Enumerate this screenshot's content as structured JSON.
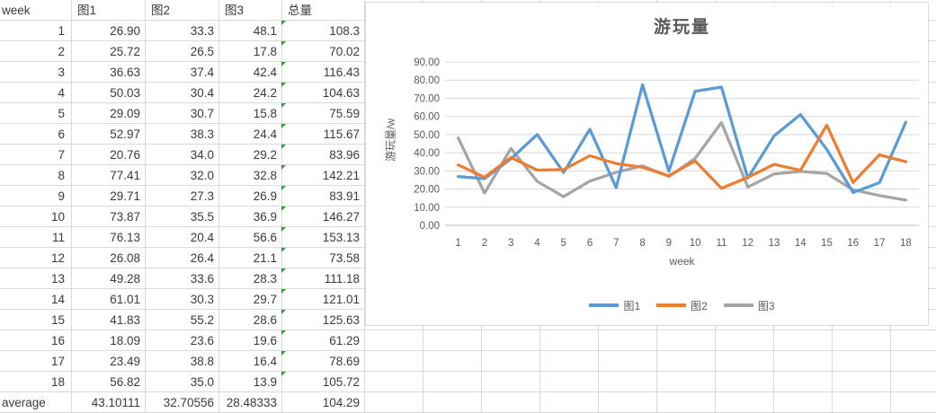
{
  "sheet": {
    "columns": [
      "week",
      "图1",
      "图2",
      "图3",
      "总量"
    ],
    "rows": [
      [
        "1",
        "26.90",
        "33.3",
        "48.1",
        "108.3"
      ],
      [
        "2",
        "25.72",
        "26.5",
        "17.8",
        "70.02"
      ],
      [
        "3",
        "36.63",
        "37.4",
        "42.4",
        "116.43"
      ],
      [
        "4",
        "50.03",
        "30.4",
        "24.2",
        "104.63"
      ],
      [
        "5",
        "29.09",
        "30.7",
        "15.8",
        "75.59"
      ],
      [
        "6",
        "52.97",
        "38.3",
        "24.4",
        "115.67"
      ],
      [
        "7",
        "20.76",
        "34.0",
        "29.2",
        "83.96"
      ],
      [
        "8",
        "77.41",
        "32.0",
        "32.8",
        "142.21"
      ],
      [
        "9",
        "29.71",
        "27.3",
        "26.9",
        "83.91"
      ],
      [
        "10",
        "73.87",
        "35.5",
        "36.9",
        "146.27"
      ],
      [
        "11",
        "76.13",
        "20.4",
        "56.6",
        "153.13"
      ],
      [
        "12",
        "26.08",
        "26.4",
        "21.1",
        "73.58"
      ],
      [
        "13",
        "49.28",
        "33.6",
        "28.3",
        "111.18"
      ],
      [
        "14",
        "61.01",
        "30.3",
        "29.7",
        "121.01"
      ],
      [
        "15",
        "41.83",
        "55.2",
        "28.6",
        "125.63"
      ],
      [
        "16",
        "18.09",
        "23.6",
        "19.6",
        "61.29"
      ],
      [
        "17",
        "23.49",
        "38.8",
        "16.4",
        "78.69"
      ],
      [
        "18",
        "56.82",
        "35.0",
        "13.9",
        "105.72"
      ]
    ],
    "footer": [
      "average",
      "43.10111",
      "32.70556",
      "28.48333",
      "104.29"
    ],
    "error_indicator_color": "#2ca02c"
  },
  "chart_data": {
    "type": "line",
    "title": "游玩量",
    "xlabel": "week",
    "ylabel": "游玩量/w",
    "x": [
      1,
      2,
      3,
      4,
      5,
      6,
      7,
      8,
      9,
      10,
      11,
      12,
      13,
      14,
      15,
      16,
      17,
      18
    ],
    "series": [
      {
        "name": "图1",
        "color": "#5B9BD5",
        "values": [
          26.9,
          25.72,
          36.63,
          50.03,
          29.09,
          52.97,
          20.76,
          77.41,
          29.71,
          73.87,
          76.13,
          26.08,
          49.28,
          61.01,
          41.83,
          18.09,
          23.49,
          56.82
        ]
      },
      {
        "name": "图2",
        "color": "#ED7D31",
        "values": [
          33.3,
          26.5,
          37.4,
          30.4,
          30.7,
          38.3,
          34.0,
          32.0,
          27.3,
          35.5,
          20.4,
          26.4,
          33.6,
          30.3,
          55.2,
          23.6,
          38.8,
          35.0
        ]
      },
      {
        "name": "图3",
        "color": "#A5A5A5",
        "values": [
          48.1,
          17.8,
          42.4,
          24.2,
          15.8,
          24.4,
          29.2,
          32.8,
          26.9,
          36.9,
          56.6,
          21.1,
          28.3,
          29.7,
          28.6,
          19.6,
          16.4,
          13.9
        ]
      }
    ],
    "ylim": [
      0,
      90
    ],
    "ytick_step": 10,
    "ytick_labels": [
      "0.00",
      "10.00",
      "20.00",
      "30.00",
      "40.00",
      "50.00",
      "60.00",
      "70.00",
      "80.00",
      "90.00"
    ],
    "grid": true,
    "legend_position": "bottom"
  }
}
